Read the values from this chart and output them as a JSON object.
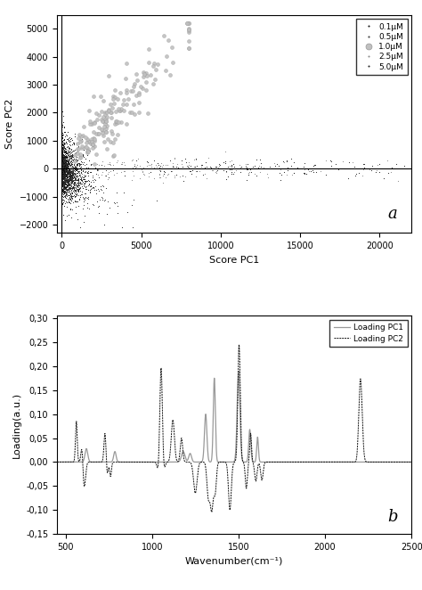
{
  "scatter": {
    "xlabel": "Score PC1",
    "ylabel": "Score PC2",
    "xlim": [
      -300,
      22000
    ],
    "ylim": [
      -2300,
      5500
    ],
    "xticks": [
      0,
      5000,
      10000,
      15000,
      20000
    ],
    "yticks": [
      -2000,
      -1000,
      0,
      1000,
      2000,
      3000,
      4000,
      5000
    ],
    "legend_labels": [
      "0.1μM",
      "0.5μM",
      "1.0μM",
      "2.5μM",
      "5.0μM"
    ],
    "colors": [
      "#111111",
      "#333333",
      "#aaaaaa",
      "#777777",
      "#222222"
    ],
    "label_a": "a"
  },
  "loading": {
    "xlabel": "Wavenumber(cm⁻¹)",
    "ylabel": "Loading(a.u.)",
    "xlim": [
      450,
      2500
    ],
    "ylim": [
      -0.15,
      0.305
    ],
    "xticks": [
      500,
      1000,
      1500,
      2000,
      2500
    ],
    "yticks": [
      -0.15,
      -0.1,
      -0.05,
      0.0,
      0.05,
      0.1,
      0.15,
      0.2,
      0.25,
      0.3
    ],
    "ytick_labels": [
      "-0,15",
      "-0,10",
      "-0,05",
      "0,00",
      "0,05",
      "0,10",
      "0,15",
      "0,20",
      "0,25",
      "0,30"
    ],
    "legend_labels": [
      "Loading PC1",
      "Loading PC2"
    ],
    "label_b": "b"
  }
}
